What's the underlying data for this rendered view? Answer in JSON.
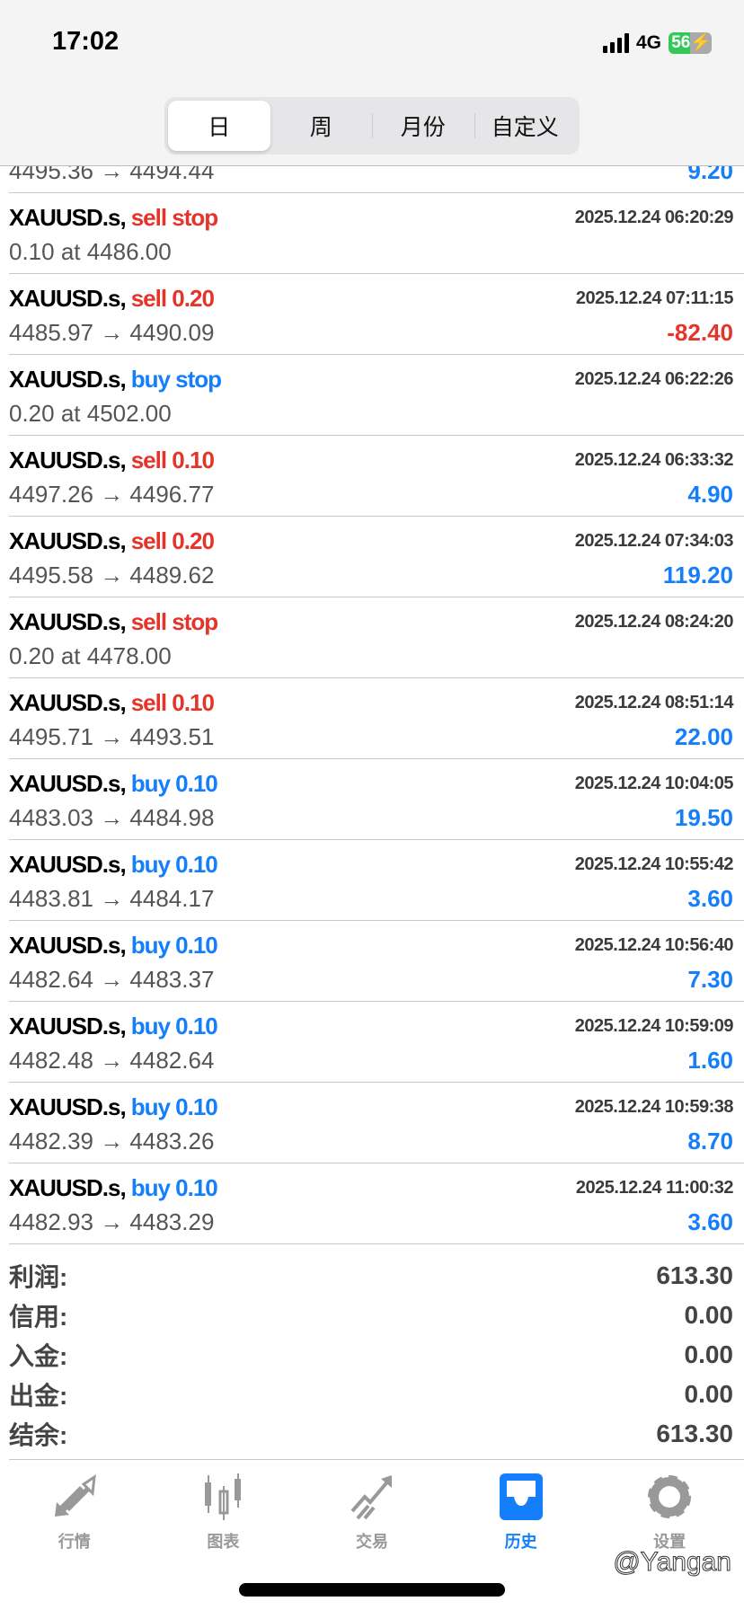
{
  "status_bar": {
    "time": "17:02",
    "network": "4G",
    "battery": "56"
  },
  "segments": [
    {
      "label": "日",
      "active": true
    },
    {
      "label": "周"
    },
    {
      "label": "月份"
    },
    {
      "label": "自定义"
    }
  ],
  "partial_row": {
    "prices": "4495.36 → 4494.44",
    "profit": "9.20"
  },
  "rows": [
    {
      "symbol": "XAUUSD.s,",
      "type": "sell stop",
      "time": "2025.12.24 06:20:29",
      "prices": "0.10 at 4486.00",
      "profit": ""
    },
    {
      "symbol": "XAUUSD.s,",
      "type": "sell 0.20",
      "time": "2025.12.24 07:11:15",
      "prices": "4485.97 → 4490.09",
      "profit": "-82.40"
    },
    {
      "symbol": "XAUUSD.s,",
      "type": "buy stop",
      "time": "2025.12.24 06:22:26",
      "prices": "0.20 at 4502.00",
      "profit": ""
    },
    {
      "symbol": "XAUUSD.s,",
      "type": "sell 0.10",
      "time": "2025.12.24 06:33:32",
      "prices": "4497.26 → 4496.77",
      "profit": "4.90"
    },
    {
      "symbol": "XAUUSD.s,",
      "type": "sell 0.20",
      "time": "2025.12.24 07:34:03",
      "prices": "4495.58 → 4489.62",
      "profit": "119.20"
    },
    {
      "symbol": "XAUUSD.s,",
      "type": "sell stop",
      "time": "2025.12.24 08:24:20",
      "prices": "0.20 at 4478.00",
      "profit": ""
    },
    {
      "symbol": "XAUUSD.s,",
      "type": "sell 0.10",
      "time": "2025.12.24 08:51:14",
      "prices": "4495.71 → 4493.51",
      "profit": "22.00"
    },
    {
      "symbol": "XAUUSD.s,",
      "type": "buy 0.10",
      "time": "2025.12.24 10:04:05",
      "prices": "4483.03 → 4484.98",
      "profit": "19.50"
    },
    {
      "symbol": "XAUUSD.s,",
      "type": "buy 0.10",
      "time": "2025.12.24 10:55:42",
      "prices": "4483.81 → 4484.17",
      "profit": "3.60"
    },
    {
      "symbol": "XAUUSD.s,",
      "type": "buy 0.10",
      "time": "2025.12.24 10:56:40",
      "prices": "4482.64 → 4483.37",
      "profit": "7.30"
    },
    {
      "symbol": "XAUUSD.s,",
      "type": "buy 0.10",
      "time": "2025.12.24 10:59:09",
      "prices": "4482.48 → 4482.64",
      "profit": "1.60"
    },
    {
      "symbol": "XAUUSD.s,",
      "type": "buy 0.10",
      "time": "2025.12.24 10:59:38",
      "prices": "4482.39 → 4483.26",
      "profit": "8.70"
    },
    {
      "symbol": "XAUUSD.s,",
      "type": "buy 0.10",
      "time": "2025.12.24 11:00:32",
      "prices": "4482.93 → 4483.29",
      "profit": "3.60"
    }
  ],
  "summary": [
    {
      "label": "利润:",
      "value": "613.30"
    },
    {
      "label": "信用:",
      "value": "0.00"
    },
    {
      "label": "入金:",
      "value": "0.00"
    },
    {
      "label": "出金:",
      "value": "0.00"
    },
    {
      "label": "结余:",
      "value": "613.30"
    }
  ],
  "tabs": [
    {
      "label": "行情",
      "icon": "quotes-arrows-icon"
    },
    {
      "label": "图表",
      "icon": "candlestick-chart-icon"
    },
    {
      "label": "交易",
      "icon": "trade-trend-icon"
    },
    {
      "label": "历史",
      "icon": "history-inbox-icon",
      "active": true
    },
    {
      "label": "设置",
      "icon": "gear-icon"
    }
  ],
  "watermark": "@Yangan",
  "colors": {
    "sell": "#e5352b",
    "buy": "#157efb",
    "accent": "#157efb",
    "negative": "#e5352b"
  }
}
